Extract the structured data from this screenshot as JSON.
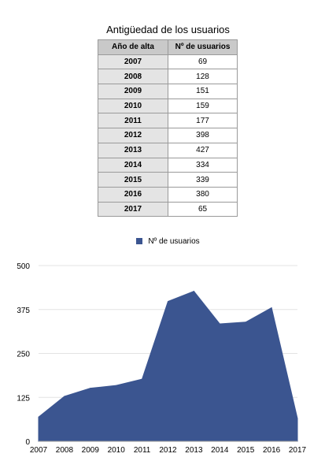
{
  "table": {
    "title": "Antigüedad de los usuarios",
    "headers": [
      "Año de alta",
      "Nº de usuarios"
    ],
    "rows": [
      [
        "2007",
        "69"
      ],
      [
        "2008",
        "128"
      ],
      [
        "2009",
        "151"
      ],
      [
        "2010",
        "159"
      ],
      [
        "2011",
        "177"
      ],
      [
        "2012",
        "398"
      ],
      [
        "2013",
        "427"
      ],
      [
        "2014",
        "334"
      ],
      [
        "2015",
        "339"
      ],
      [
        "2016",
        "380"
      ],
      [
        "2017",
        "65"
      ]
    ]
  },
  "chart_data": {
    "type": "area",
    "title": "",
    "xlabel": "",
    "ylabel": "",
    "x": [
      "2007",
      "2008",
      "2009",
      "2010",
      "2011",
      "2012",
      "2013",
      "2014",
      "2015",
      "2016",
      "2017"
    ],
    "series": [
      {
        "name": "Nº de usuarios",
        "values": [
          69,
          128,
          151,
          159,
          177,
          398,
          427,
          334,
          339,
          380,
          65
        ]
      }
    ],
    "yticks": [
      0,
      125,
      250,
      375,
      500
    ],
    "ylim": [
      0,
      500
    ],
    "grid": true,
    "legend": "top-center",
    "color": "#3b5590"
  }
}
